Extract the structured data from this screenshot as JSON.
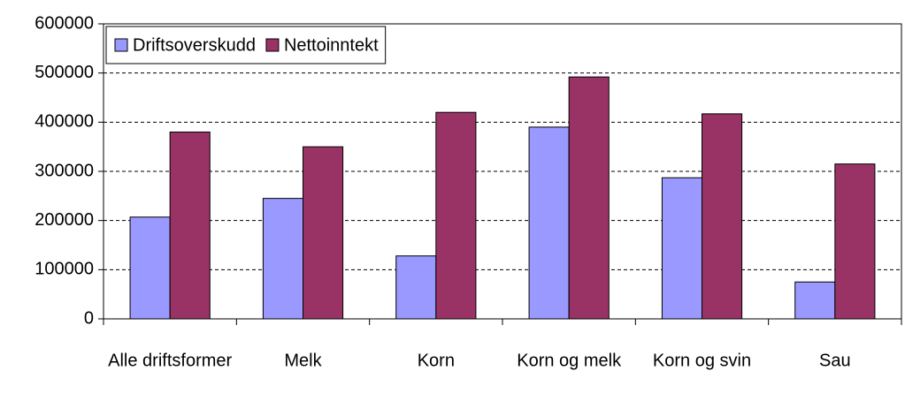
{
  "chart_data": {
    "type": "bar",
    "categories": [
      "Alle driftsformer",
      "Melk",
      "Korn",
      "Korn og melk",
      "Korn og svin",
      "Sau"
    ],
    "series": [
      {
        "name": "Driftsoverskudd",
        "color": "#9999ff",
        "values": [
          207000,
          245000,
          128000,
          390000,
          287000,
          75000
        ]
      },
      {
        "name": "Nettoinntekt",
        "color": "#993366",
        "values": [
          380000,
          350000,
          420000,
          492000,
          417000,
          315000
        ]
      }
    ],
    "ylim": [
      0,
      600000
    ],
    "yticks": [
      0,
      100000,
      200000,
      300000,
      400000,
      500000,
      600000
    ],
    "grid": true,
    "legend": "top-left"
  }
}
